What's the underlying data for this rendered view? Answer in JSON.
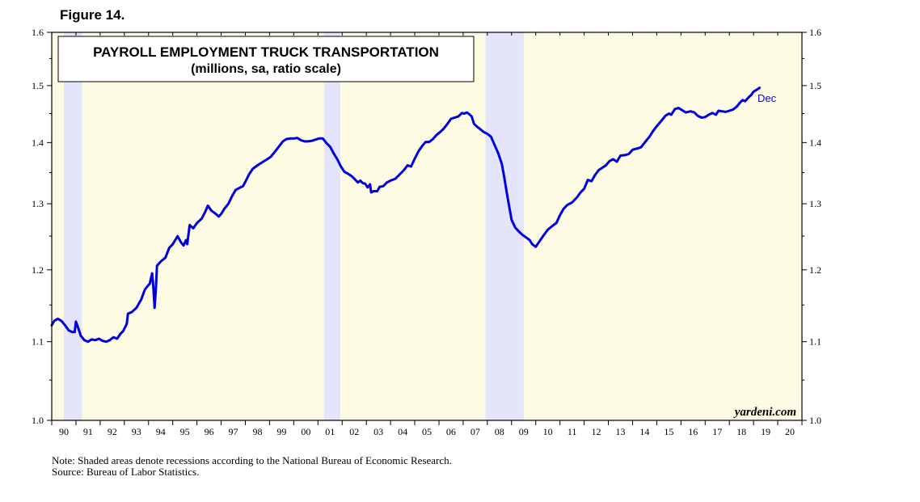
{
  "figure_label": "Figure 14.",
  "notes": {
    "note": "Note: Shaded areas denote recessions according to the National Bureau of Economic Research.",
    "source": "Source: Bureau of Labor Statistics."
  },
  "watermark": "yardeni.com",
  "colors": {
    "series": "#0000dd",
    "plot_bg": "#fdfbe4",
    "recession": "#e4e4fb",
    "end_label": "#0000ee"
  },
  "chart_data": {
    "type": "line",
    "title": "PAYROLL EMPLOYMENT TRUCK TRANSPORTATION",
    "subtitle": "(millions, sa, ratio scale)",
    "y_scale": "log",
    "ylim": [
      1.0,
      1.6
    ],
    "yticks": [
      "1.0",
      "1.1",
      "1.2",
      "1.3",
      "1.4",
      "1.5",
      "1.6"
    ],
    "xlim": [
      1990.0,
      2021.0
    ],
    "xtick_labels": [
      "90",
      "91",
      "92",
      "93",
      "94",
      "95",
      "96",
      "97",
      "98",
      "99",
      "00",
      "01",
      "02",
      "03",
      "04",
      "05",
      "06",
      "07",
      "08",
      "09",
      "10",
      "11",
      "12",
      "13",
      "14",
      "15",
      "16",
      "17",
      "18",
      "19",
      "20"
    ],
    "recessions": [
      [
        1990.5,
        1991.25
      ],
      [
        2001.25,
        2001.92
      ],
      [
        2007.92,
        2009.5
      ]
    ],
    "end_label": "Dec",
    "legend": "none",
    "grid": false,
    "series": [
      {
        "values": [
          [
            1990.0,
            1.122
          ],
          [
            1990.1,
            1.128
          ],
          [
            1990.25,
            1.131
          ],
          [
            1990.4,
            1.128
          ],
          [
            1990.55,
            1.122
          ],
          [
            1990.7,
            1.115
          ],
          [
            1990.85,
            1.113
          ],
          [
            1990.95,
            1.113
          ],
          [
            1991.0,
            1.127
          ],
          [
            1991.08,
            1.12
          ],
          [
            1991.2,
            1.108
          ],
          [
            1991.35,
            1.102
          ],
          [
            1991.5,
            1.1
          ],
          [
            1991.65,
            1.103
          ],
          [
            1991.8,
            1.102
          ],
          [
            1991.95,
            1.104
          ],
          [
            1992.1,
            1.101
          ],
          [
            1992.25,
            1.1
          ],
          [
            1992.4,
            1.102
          ],
          [
            1992.55,
            1.106
          ],
          [
            1992.7,
            1.104
          ],
          [
            1992.85,
            1.111
          ],
          [
            1992.95,
            1.114
          ],
          [
            1993.1,
            1.124
          ],
          [
            1993.15,
            1.138
          ],
          [
            1993.3,
            1.14
          ],
          [
            1993.5,
            1.146
          ],
          [
            1993.7,
            1.158
          ],
          [
            1993.85,
            1.172
          ],
          [
            1993.95,
            1.176
          ],
          [
            1994.05,
            1.18
          ],
          [
            1994.15,
            1.195
          ],
          [
            1994.2,
            1.175
          ],
          [
            1994.25,
            1.146
          ],
          [
            1994.3,
            1.17
          ],
          [
            1994.35,
            1.206
          ],
          [
            1994.5,
            1.212
          ],
          [
            1994.7,
            1.218
          ],
          [
            1994.85,
            1.232
          ],
          [
            1995.0,
            1.238
          ],
          [
            1995.2,
            1.25
          ],
          [
            1995.35,
            1.24
          ],
          [
            1995.45,
            1.236
          ],
          [
            1995.55,
            1.244
          ],
          [
            1995.6,
            1.238
          ],
          [
            1995.7,
            1.267
          ],
          [
            1995.85,
            1.262
          ],
          [
            1996.0,
            1.27
          ],
          [
            1996.2,
            1.277
          ],
          [
            1996.35,
            1.288
          ],
          [
            1996.45,
            1.297
          ],
          [
            1996.6,
            1.289
          ],
          [
            1996.75,
            1.285
          ],
          [
            1996.9,
            1.28
          ],
          [
            1997.0,
            1.284
          ],
          [
            1997.15,
            1.293
          ],
          [
            1997.3,
            1.3
          ],
          [
            1997.45,
            1.312
          ],
          [
            1997.6,
            1.322
          ],
          [
            1997.75,
            1.325
          ],
          [
            1997.9,
            1.328
          ],
          [
            1998.0,
            1.335
          ],
          [
            1998.15,
            1.347
          ],
          [
            1998.3,
            1.356
          ],
          [
            1998.5,
            1.362
          ],
          [
            1998.7,
            1.367
          ],
          [
            1998.9,
            1.372
          ],
          [
            1999.05,
            1.376
          ],
          [
            1999.25,
            1.386
          ],
          [
            1999.4,
            1.394
          ],
          [
            1999.55,
            1.402
          ],
          [
            1999.7,
            1.406
          ],
          [
            1999.85,
            1.407
          ],
          [
            2000.0,
            1.407
          ],
          [
            2000.15,
            1.408
          ],
          [
            2000.3,
            1.404
          ],
          [
            2000.45,
            1.402
          ],
          [
            2000.6,
            1.402
          ],
          [
            2000.75,
            1.403
          ],
          [
            2000.9,
            1.405
          ],
          [
            2001.05,
            1.407
          ],
          [
            2001.2,
            1.407
          ],
          [
            2001.35,
            1.399
          ],
          [
            2001.5,
            1.393
          ],
          [
            2001.65,
            1.382
          ],
          [
            2001.8,
            1.372
          ],
          [
            2001.95,
            1.36
          ],
          [
            2002.1,
            1.351
          ],
          [
            2002.25,
            1.348
          ],
          [
            2002.4,
            1.344
          ],
          [
            2002.55,
            1.338
          ],
          [
            2002.65,
            1.334
          ],
          [
            2002.75,
            1.337
          ],
          [
            2002.85,
            1.333
          ],
          [
            2002.95,
            1.332
          ],
          [
            2003.05,
            1.326
          ],
          [
            2003.15,
            1.331
          ],
          [
            2003.2,
            1.318
          ],
          [
            2003.3,
            1.32
          ],
          [
            2003.45,
            1.32
          ],
          [
            2003.55,
            1.327
          ],
          [
            2003.7,
            1.328
          ],
          [
            2003.85,
            1.334
          ],
          [
            2004.0,
            1.337
          ],
          [
            2004.2,
            1.34
          ],
          [
            2004.4,
            1.348
          ],
          [
            2004.55,
            1.354
          ],
          [
            2004.7,
            1.362
          ],
          [
            2004.85,
            1.36
          ],
          [
            2005.0,
            1.373
          ],
          [
            2005.15,
            1.385
          ],
          [
            2005.3,
            1.394
          ],
          [
            2005.45,
            1.401
          ],
          [
            2005.6,
            1.401
          ],
          [
            2005.75,
            1.406
          ],
          [
            2005.9,
            1.413
          ],
          [
            2006.05,
            1.418
          ],
          [
            2006.2,
            1.424
          ],
          [
            2006.35,
            1.432
          ],
          [
            2006.5,
            1.441
          ],
          [
            2006.65,
            1.443
          ],
          [
            2006.8,
            1.445
          ],
          [
            2006.95,
            1.451
          ],
          [
            2007.05,
            1.45
          ],
          [
            2007.15,
            1.452
          ],
          [
            2007.25,
            1.449
          ],
          [
            2007.35,
            1.445
          ],
          [
            2007.45,
            1.432
          ],
          [
            2007.55,
            1.428
          ],
          [
            2007.7,
            1.423
          ],
          [
            2007.85,
            1.418
          ],
          [
            2008.0,
            1.415
          ],
          [
            2008.15,
            1.41
          ],
          [
            2008.3,
            1.396
          ],
          [
            2008.45,
            1.382
          ],
          [
            2008.6,
            1.364
          ],
          [
            2008.7,
            1.342
          ],
          [
            2008.8,
            1.318
          ],
          [
            2008.9,
            1.296
          ],
          [
            2009.0,
            1.275
          ],
          [
            2009.15,
            1.263
          ],
          [
            2009.3,
            1.257
          ],
          [
            2009.45,
            1.252
          ],
          [
            2009.6,
            1.248
          ],
          [
            2009.75,
            1.244
          ],
          [
            2009.85,
            1.238
          ],
          [
            2010.0,
            1.234
          ],
          [
            2010.15,
            1.242
          ],
          [
            2010.3,
            1.25
          ],
          [
            2010.5,
            1.26
          ],
          [
            2010.7,
            1.266
          ],
          [
            2010.85,
            1.27
          ],
          [
            2011.0,
            1.282
          ],
          [
            2011.15,
            1.292
          ],
          [
            2011.3,
            1.298
          ],
          [
            2011.5,
            1.302
          ],
          [
            2011.7,
            1.31
          ],
          [
            2011.85,
            1.318
          ],
          [
            2012.0,
            1.324
          ],
          [
            2012.15,
            1.338
          ],
          [
            2012.3,
            1.336
          ],
          [
            2012.45,
            1.346
          ],
          [
            2012.6,
            1.354
          ],
          [
            2012.75,
            1.358
          ],
          [
            2012.9,
            1.362
          ],
          [
            2013.05,
            1.369
          ],
          [
            2013.2,
            1.372
          ],
          [
            2013.35,
            1.368
          ],
          [
            2013.5,
            1.378
          ],
          [
            2013.7,
            1.379
          ],
          [
            2013.85,
            1.381
          ],
          [
            2014.0,
            1.388
          ],
          [
            2014.2,
            1.39
          ],
          [
            2014.35,
            1.392
          ],
          [
            2014.5,
            1.4
          ],
          [
            2014.7,
            1.41
          ],
          [
            2014.85,
            1.42
          ],
          [
            2015.0,
            1.428
          ],
          [
            2015.2,
            1.438
          ],
          [
            2015.35,
            1.446
          ],
          [
            2015.5,
            1.45
          ],
          [
            2015.6,
            1.448
          ],
          [
            2015.75,
            1.458
          ],
          [
            2015.9,
            1.46
          ],
          [
            2016.05,
            1.456
          ],
          [
            2016.2,
            1.452
          ],
          [
            2016.4,
            1.454
          ],
          [
            2016.55,
            1.452
          ],
          [
            2016.7,
            1.446
          ],
          [
            2016.85,
            1.443
          ],
          [
            2017.0,
            1.444
          ],
          [
            2017.15,
            1.448
          ],
          [
            2017.3,
            1.451
          ],
          [
            2017.45,
            1.448
          ],
          [
            2017.55,
            1.455
          ],
          [
            2017.7,
            1.454
          ],
          [
            2017.85,
            1.453
          ],
          [
            2018.0,
            1.455
          ],
          [
            2018.15,
            1.457
          ],
          [
            2018.3,
            1.462
          ],
          [
            2018.45,
            1.47
          ],
          [
            2018.55,
            1.474
          ],
          [
            2018.65,
            1.472
          ],
          [
            2018.8,
            1.479
          ],
          [
            2018.9,
            1.483
          ],
          [
            2019.0,
            1.489
          ],
          [
            2019.15,
            1.493
          ],
          [
            2019.25,
            1.496
          ]
        ]
      }
    ]
  }
}
